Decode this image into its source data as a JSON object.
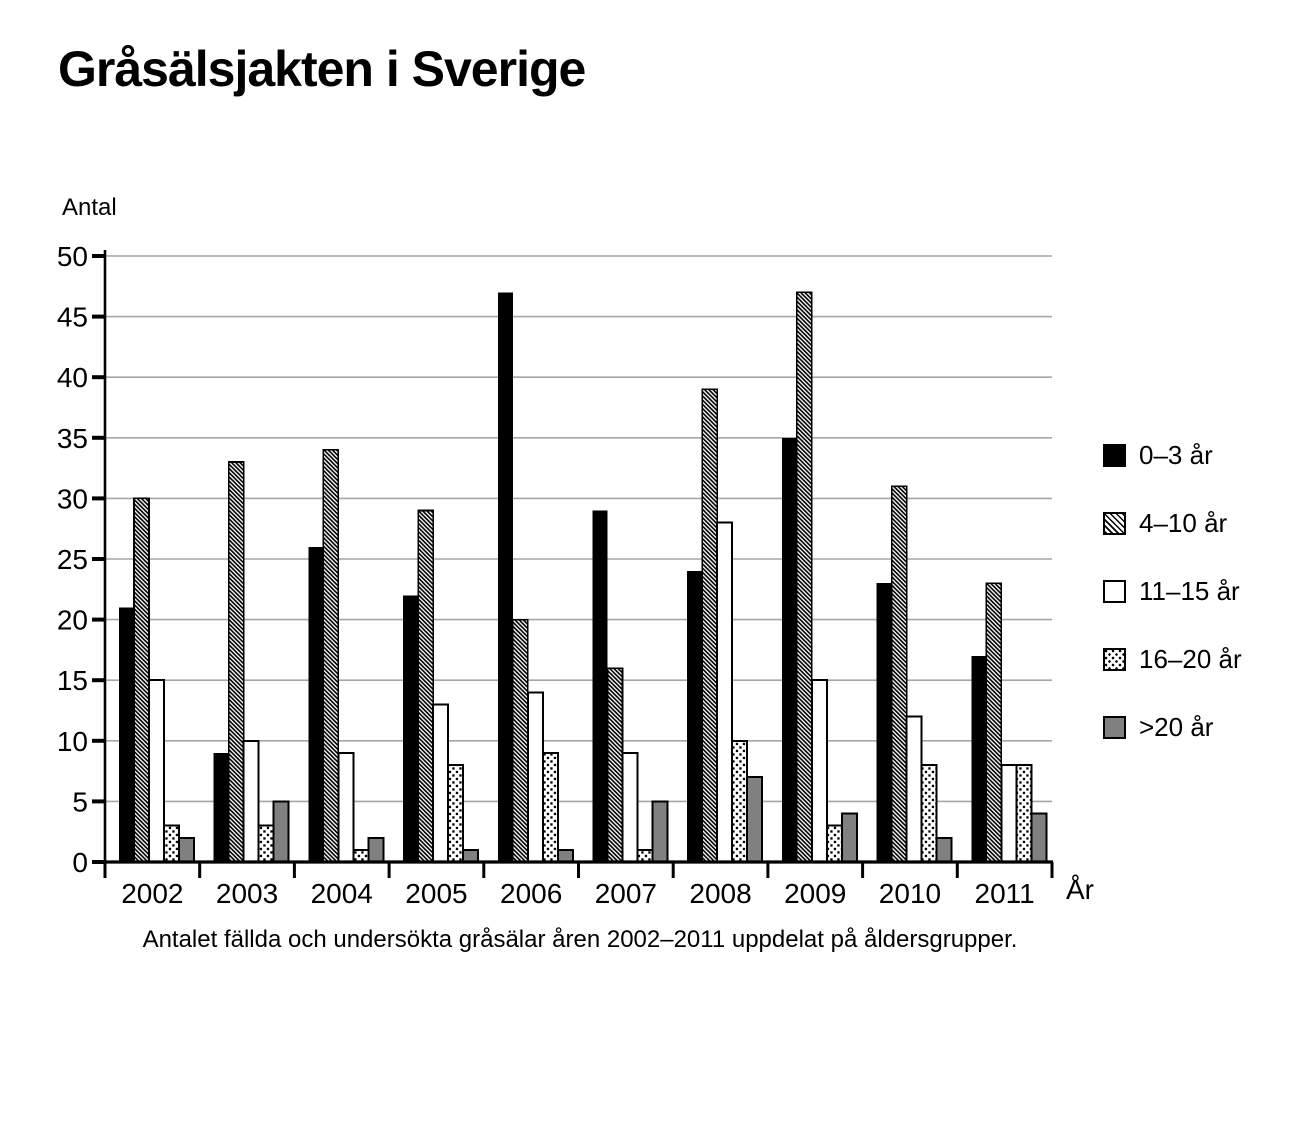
{
  "title": "Gråsälsjakten i Sverige",
  "y_axis_label": "Antal",
  "x_axis_label": "År",
  "caption": "Antalet fällda och undersökta gråsälar åren 2002–2011 uppdelat på åldersgrupper.",
  "chart_data": {
    "type": "bar",
    "title": "Gråsälsjakten i Sverige",
    "xlabel": "År",
    "ylabel": "Antal",
    "categories": [
      "2002",
      "2003",
      "2004",
      "2005",
      "2006",
      "2007",
      "2008",
      "2009",
      "2010",
      "2011"
    ],
    "series": [
      {
        "name": "0–3 år",
        "pattern": "solid-black",
        "values": [
          21,
          9,
          26,
          22,
          47,
          29,
          24,
          35,
          23,
          17
        ]
      },
      {
        "name": "4–10 år",
        "pattern": "diagonal-hatch",
        "values": [
          30,
          33,
          34,
          29,
          20,
          16,
          39,
          47,
          31,
          23
        ]
      },
      {
        "name": "11–15 år",
        "pattern": "white",
        "values": [
          15,
          10,
          9,
          13,
          14,
          9,
          28,
          15,
          12,
          8
        ]
      },
      {
        "name": "16–20 år",
        "pattern": "dotted",
        "values": [
          3,
          3,
          1,
          8,
          9,
          1,
          10,
          3,
          8,
          8
        ]
      },
      {
        "name": ">20 år",
        "pattern": "solid-gray",
        "values": [
          2,
          5,
          2,
          1,
          1,
          5,
          7,
          4,
          2,
          4
        ]
      }
    ],
    "ylim": [
      0,
      50
    ],
    "ytick_step": 5,
    "grid": true,
    "legend_position": "right",
    "colors": {
      "bar_black": "#000000",
      "bar_gray": "#808080",
      "bar_white": "#ffffff",
      "bar_outline": "#000000",
      "gridline": "#a6a6a6",
      "axis": "#000000"
    }
  }
}
